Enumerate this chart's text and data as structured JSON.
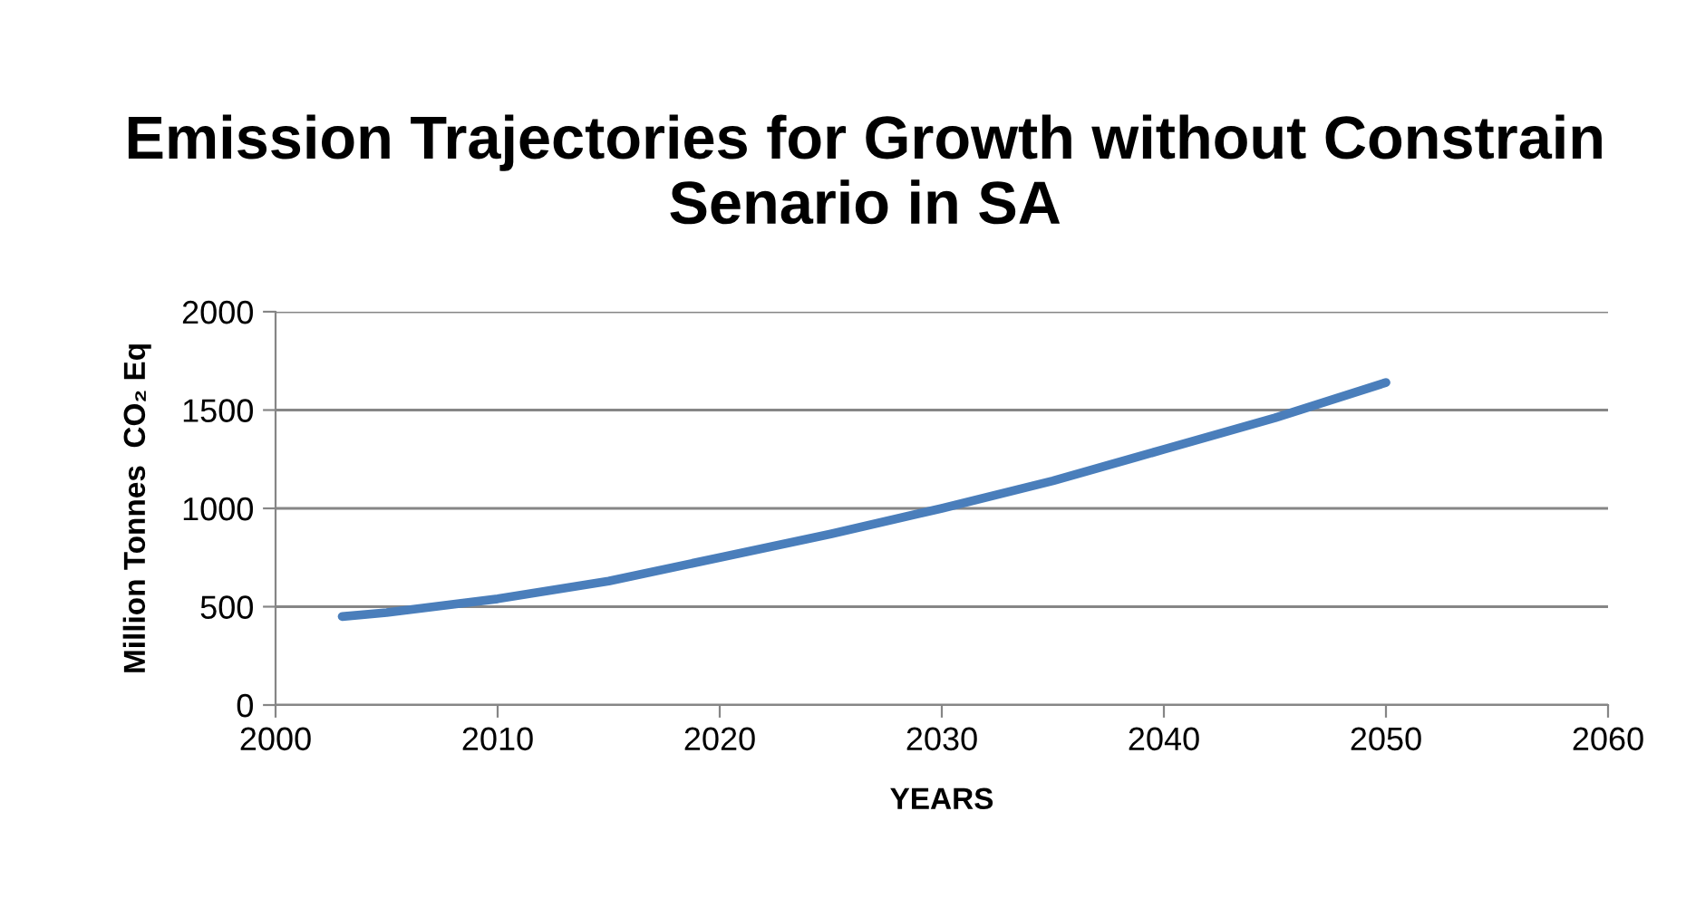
{
  "chart_data": {
    "type": "line",
    "title": "Emission Trajectories for Growth without Constrain Senario in SA",
    "xlabel": "YEARS",
    "ylabel": "Million Tonnes  CO₂ Eq",
    "x": [
      2003,
      2005,
      2010,
      2015,
      2020,
      2025,
      2030,
      2035,
      2040,
      2045,
      2050
    ],
    "series": [
      {
        "color": "#4a7ebb",
        "values": [
          450,
          470,
          540,
          630,
          750,
          870,
          1000,
          1140,
          1300,
          1460,
          1640
        ]
      }
    ],
    "xlim": [
      2000,
      2060
    ],
    "xticks": [
      2000,
      2010,
      2020,
      2030,
      2040,
      2050,
      2060
    ],
    "ylim": [
      0,
      2000
    ],
    "yticks": [
      0,
      500,
      1000,
      1500,
      2000
    ],
    "grid": "y",
    "marker": "none",
    "line_style": "solid"
  }
}
